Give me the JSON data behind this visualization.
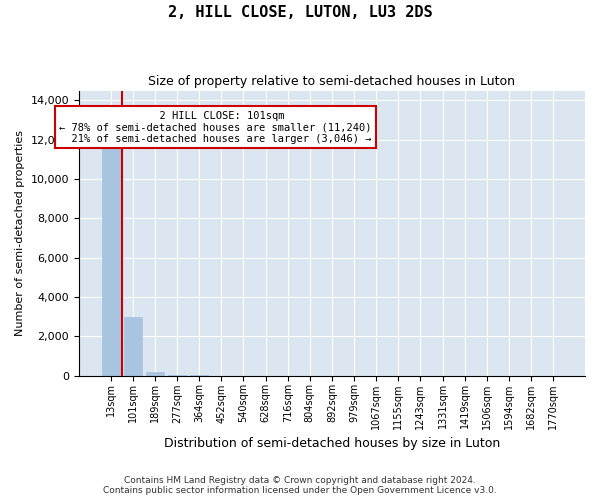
{
  "title_line1": "2, HILL CLOSE, LUTON, LU3 2DS",
  "title_line2": "Size of property relative to semi-detached houses in Luton",
  "xlabel": "Distribution of semi-detached houses by size in Luton",
  "ylabel": "Number of semi-detached properties",
  "property_label": "2 HILL CLOSE: 101sqm",
  "pct_smaller": 78,
  "count_smaller": 11240,
  "pct_larger": 21,
  "count_larger": 3046,
  "bin_labels": [
    "13sqm",
    "101sqm",
    "189sqm",
    "277sqm",
    "364sqm",
    "452sqm",
    "540sqm",
    "628sqm",
    "716sqm",
    "804sqm",
    "892sqm",
    "979sqm",
    "1067sqm",
    "1155sqm",
    "1243sqm",
    "1331sqm",
    "1419sqm",
    "1506sqm",
    "1594sqm",
    "1682sqm",
    "1770sqm"
  ],
  "bar_values": [
    13286,
    2980,
    160,
    10,
    2,
    1,
    0,
    0,
    0,
    0,
    0,
    0,
    0,
    0,
    0,
    0,
    0,
    0,
    0,
    0,
    0
  ],
  "bar_color": "#a8c4e0",
  "vline_color": "#cc0000",
  "annotation_box_color": "#cc0000",
  "ylim": [
    0,
    14500
  ],
  "yticks": [
    0,
    2000,
    4000,
    6000,
    8000,
    10000,
    12000,
    14000
  ],
  "background_color": "#dce6f0",
  "footer_line1": "Contains HM Land Registry data © Crown copyright and database right 2024.",
  "footer_line2": "Contains public sector information licensed under the Open Government Licence v3.0."
}
